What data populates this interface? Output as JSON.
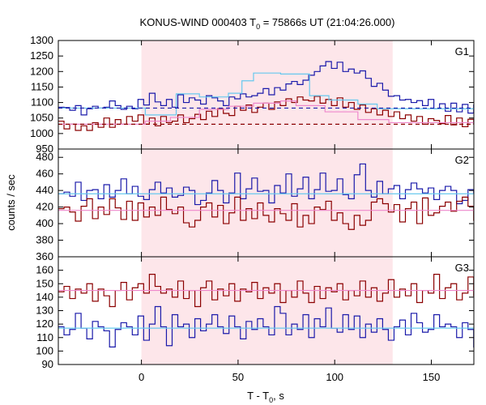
{
  "chart_data": {
    "type": "line",
    "title_main": "KONUS-WIND 000403 T",
    "title_sub": "0",
    "title_rest": " = 75866s UT (21:04:26.000)",
    "xlabel_main": "T - T",
    "xlabel_sub": "0",
    "xlabel_rest": ", s",
    "ylabel": "counts / sec",
    "xlim": [
      -43,
      172
    ],
    "xticks": [
      "0",
      "50",
      "100",
      "150"
    ],
    "xtick_values": [
      0,
      50,
      100,
      150
    ],
    "shaded_region": [
      0,
      130
    ],
    "colors": {
      "blue": "#1a1aaa",
      "red": "#8b0000",
      "lightblue": "#66c8ee",
      "pink": "#ee88cc",
      "shade": "#fde6ea"
    },
    "panels": [
      {
        "label": "G1",
        "ylim": [
          950,
          1300
        ],
        "yticks": [
          "950",
          "1000",
          "1050",
          "1100",
          "1150",
          "1200",
          "1250",
          "1300"
        ],
        "ytick_values": [
          950,
          1000,
          1050,
          1100,
          1150,
          1200,
          1250,
          1300
        ],
        "series": [
          {
            "x0": -43,
            "dx": 2.944,
            "values": [
              1085,
              1084,
              1075,
              1090,
              1060,
              1080,
              1088,
              1082,
              1085,
              1105,
              1090,
              1078,
              1088,
              1080,
              1110,
              1092,
              1130,
              1102,
              1090,
              1110,
              1085,
              1125,
              1100,
              1115,
              1108,
              1095,
              1122,
              1115,
              1105,
              1090,
              1118,
              1112,
              1128,
              1118,
              1122,
              1130,
              1145,
              1125,
              1148,
              1140,
              1160,
              1168,
              1158,
              1172,
              1188,
              1200,
              1218,
              1232,
              1210,
              1230,
              1200,
              1208,
              1195,
              1202,
              1178,
              1152,
              1162,
              1140,
              1120,
              1122,
              1108,
              1110,
              1100,
              1106,
              1090,
              1110,
              1080,
              1096,
              1072,
              1098,
              1070,
              1094,
              1066,
              1092,
              1072,
              1085,
              1058,
              1088,
              1070,
              1095,
              1065,
              1092,
              1080,
              1100,
              1060,
              1090,
              1070,
              1085
            ],
            "style": "blue"
          },
          {
            "x0": -43,
            "dx": 2.944,
            "values": [
              1040,
              1015,
              1030,
              1010,
              1025,
              1010,
              1035,
              1020,
              1050,
              1020,
              1045,
              1030,
              1055,
              1040,
              1060,
              1030,
              1050,
              1025,
              1055,
              1035,
              1040,
              1060,
              1035,
              1048,
              1062,
              1045,
              1072,
              1055,
              1080,
              1065,
              1058,
              1088,
              1075,
              1092,
              1068,
              1085,
              1098,
              1078,
              1102,
              1090,
              1112,
              1100,
              1118,
              1108,
              1105,
              1120,
              1098,
              1110,
              1090,
              1115,
              1085,
              1100,
              1078,
              1092,
              1068,
              1080,
              1060,
              1075,
              1055,
              1070,
              1048,
              1060,
              1040,
              1055,
              1030,
              1048,
              1042,
              1032,
              1058,
              1028,
              1050,
              1022,
              1046,
              1030,
              1062,
              1020,
              1048,
              1030,
              1065,
              1025,
              1050,
              1040,
              1030,
              1052,
              1045,
              1030,
              1040,
              1020
            ],
            "style": "red"
          },
          {
            "points": [
              [
                -43,
                1082
              ],
              [
                2,
                1082
              ],
              [
                2,
                1060
              ],
              [
                18,
                1060
              ],
              [
                18,
                1128
              ],
              [
                30,
                1128
              ],
              [
                30,
                1118
              ],
              [
                45,
                1118
              ],
              [
                45,
                1130
              ],
              [
                52,
                1130
              ],
              [
                52,
                1170
              ],
              [
                58,
                1170
              ],
              [
                58,
                1195
              ],
              [
                72,
                1195
              ],
              [
                72,
                1192
              ],
              [
                87,
                1192
              ],
              [
                87,
                1122
              ],
              [
                97,
                1122
              ],
              [
                97,
                1108
              ],
              [
                112,
                1108
              ],
              [
                112,
                1095
              ],
              [
                122,
                1095
              ],
              [
                122,
                1080
              ],
              [
                172,
                1080
              ]
            ],
            "style": "lightblue"
          },
          {
            "points": [
              [
                -43,
                1030
              ],
              [
                2,
                1030
              ],
              [
                2,
                1040
              ],
              [
                15,
                1040
              ],
              [
                15,
                1052
              ],
              [
                30,
                1052
              ],
              [
                30,
                1078
              ],
              [
                45,
                1078
              ],
              [
                45,
                1088
              ],
              [
                58,
                1088
              ],
              [
                58,
                1098
              ],
              [
                72,
                1098
              ],
              [
                72,
                1105
              ],
              [
                80,
                1105
              ],
              [
                80,
                1090
              ],
              [
                95,
                1090
              ],
              [
                95,
                1070
              ],
              [
                112,
                1070
              ],
              [
                112,
                1045
              ],
              [
                128,
                1045
              ],
              [
                128,
                1035
              ],
              [
                172,
                1035
              ]
            ],
            "style": "pink"
          },
          {
            "points": [
              [
                -43,
                1082
              ],
              [
                172,
                1082
              ]
            ],
            "style": "dashed-blue"
          },
          {
            "points": [
              [
                -43,
                1030
              ],
              [
                172,
                1030
              ]
            ],
            "style": "dashed-red"
          }
        ]
      },
      {
        "label": "G2",
        "ylim": [
          360,
          490
        ],
        "yticks": [
          "360",
          "380",
          "400",
          "420",
          "440",
          "460",
          "480"
        ],
        "ytick_values": [
          360,
          380,
          400,
          420,
          440,
          460,
          480
        ],
        "series": [
          {
            "x0": -43,
            "dx": 2.944,
            "values": [
              436,
              438,
              433,
              450,
              428,
              440,
              441,
              430,
              447,
              432,
              440,
              454,
              436,
              445,
              433,
              429,
              441,
              450,
              437,
              443,
              432,
              434,
              444,
              440,
              423,
              428,
              437,
              452,
              440,
              425,
              437,
              461,
              430,
              442,
              455,
              439,
              440,
              425,
              446,
              437,
              460,
              433,
              442,
              456,
              430,
              441,
              461,
              439,
              440,
              454,
              435,
              430,
              459,
              472,
              440,
              432,
              451,
              436,
              442,
              446,
              430,
              441,
              449,
              442,
              437,
              443,
              429,
              440,
              445,
              440,
              424,
              428,
              441,
              437,
              436,
              425,
              443,
              441,
              432,
              437,
              444,
              430,
              442,
              436,
              429,
              433,
              438,
              437
            ],
            "style": "blue"
          },
          {
            "x0": -43,
            "dx": 2.944,
            "values": [
              418,
              420,
              414,
              403,
              421,
              430,
              406,
              420,
              411,
              430,
              419,
              405,
              427,
              404,
              425,
              408,
              420,
              410,
              432,
              417,
              412,
              420,
              401,
              396,
              404,
              420,
              425,
              408,
              422,
              400,
              413,
              432,
              404,
              418,
              406,
              425,
              410,
              402,
              418,
              412,
              404,
              424,
              396,
              410,
              400,
              420,
              417,
              427,
              404,
              413,
              400,
              393,
              410,
              398,
              404,
              426,
              430,
              424,
              414,
              423,
              402,
              418,
              426,
              400,
              431,
              410,
              413,
              421,
              426,
              415,
              427,
              432,
              421,
              404,
              420,
              428,
              412,
              398,
              418,
              424,
              431,
              410,
              422,
              413,
              402,
              424,
              394,
              415
            ],
            "style": "red"
          },
          {
            "points": [
              [
                -43,
                436
              ],
              [
                172,
                436
              ]
            ],
            "style": "lightblue"
          },
          {
            "points": [
              [
                -43,
                416
              ],
              [
                172,
                416
              ]
            ],
            "style": "pink"
          }
        ]
      },
      {
        "label": "G3",
        "ylim": [
          90,
          170
        ],
        "yticks": [
          "90",
          "100",
          "110",
          "120",
          "130",
          "140",
          "150",
          "160"
        ],
        "ytick_values": [
          90,
          100,
          110,
          120,
          130,
          140,
          150,
          160
        ],
        "series": [
          {
            "x0": -43,
            "dx": 2.944,
            "values": [
              118,
              112,
              116,
              128,
              117,
              109,
              122,
              118,
              115,
              103,
              116,
              121,
              118,
              112,
              126,
              108,
              120,
              133,
              118,
              104,
              127,
              118,
              120,
              110,
              124,
              115,
              120,
              127,
              118,
              113,
              126,
              118,
              109,
              122,
              116,
              124,
              118,
              112,
              133,
              128,
              112,
              120,
              116,
              127,
              110,
              124,
              118,
              132,
              117,
              114,
              127,
              116,
              126,
              110,
              120,
              114,
              124,
              116,
              108,
              118,
              123,
              112,
              128,
              121,
              114,
              116,
              127,
              118,
              120,
              118,
              110,
              121,
              116,
              103,
              125,
              118,
              112,
              108,
              124,
              116,
              118,
              112,
              120,
              122,
              114,
              119,
              124,
              116
            ],
            "style": "blue"
          },
          {
            "x0": -43,
            "dx": 2.944,
            "values": [
              144,
              148,
              139,
              146,
              143,
              150,
              137,
              146,
              141,
              133,
              145,
              151,
              138,
              147,
              150,
              143,
              157,
              148,
              143,
              146,
              140,
              152,
              139,
              145,
              133,
              147,
              152,
              138,
              146,
              141,
              150,
              137,
              146,
              144,
              151,
              139,
              147,
              143,
              150,
              136,
              145,
              140,
              152,
              143,
              136,
              148,
              139,
              147,
              144,
              150,
              138,
              145,
              141,
              152,
              140,
              147,
              137,
              143,
              153,
              140,
              146,
              141,
              150,
              136,
              145,
              143,
              157,
              139,
              147,
              150,
              138,
              143,
              155,
              141,
              146,
              142,
              150,
              137,
              145,
              141,
              153,
              138,
              147,
              143,
              150,
              140,
              147,
              146
            ],
            "style": "red"
          },
          {
            "points": [
              [
                -43,
                117
              ],
              [
                172,
                117
              ]
            ],
            "style": "lightblue"
          },
          {
            "points": [
              [
                -43,
                145
              ],
              [
                172,
                145
              ]
            ],
            "style": "pink"
          }
        ]
      }
    ]
  }
}
